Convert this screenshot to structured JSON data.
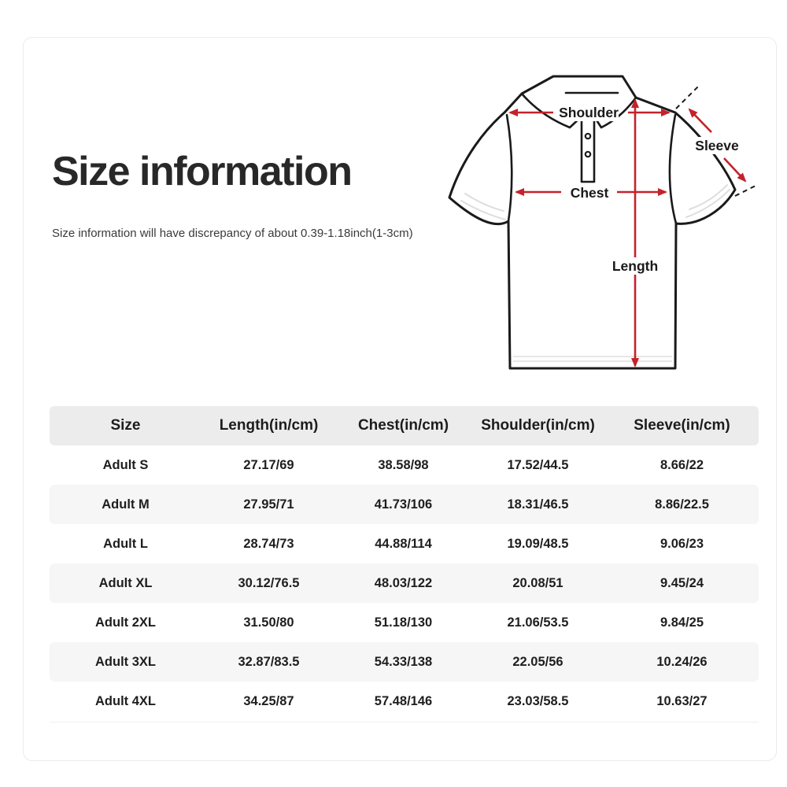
{
  "page": {
    "title": "Size information",
    "subtitle": "Size information will have discrepancy of about 0.39-1.18inch(1-3cm)"
  },
  "diagram": {
    "labels": {
      "shoulder": "Shoulder",
      "sleeve": "Sleeve",
      "chest": "Chest",
      "length": "Length"
    }
  },
  "table": {
    "headers": [
      "Size",
      "Length(in/cm)",
      "Chest(in/cm)",
      "Shoulder(in/cm)",
      "Sleeve(in/cm)"
    ],
    "rows": [
      [
        "Adult S",
        "27.17/69",
        "38.58/98",
        "17.52/44.5",
        "8.66/22"
      ],
      [
        "Adult M",
        "27.95/71",
        "41.73/106",
        "18.31/46.5",
        "8.86/22.5"
      ],
      [
        "Adult L",
        "28.74/73",
        "44.88/114",
        "19.09/48.5",
        "9.06/23"
      ],
      [
        "Adult XL",
        "30.12/76.5",
        "48.03/122",
        "20.08/51",
        "9.45/24"
      ],
      [
        "Adult 2XL",
        "31.50/80",
        "51.18/130",
        "21.06/53.5",
        "9.84/25"
      ],
      [
        "Adult 3XL",
        "32.87/83.5",
        "54.33/138",
        "22.05/56",
        "10.24/26"
      ],
      [
        "Adult 4XL",
        "34.25/87",
        "57.48/146",
        "23.03/58.5",
        "10.63/27"
      ]
    ]
  },
  "colors": {
    "arrow": "#c3232b",
    "ink": "#1a1a1a",
    "header_bg": "#ececec",
    "stripe_bg": "#f6f6f7",
    "card_border": "#ebebeb"
  }
}
